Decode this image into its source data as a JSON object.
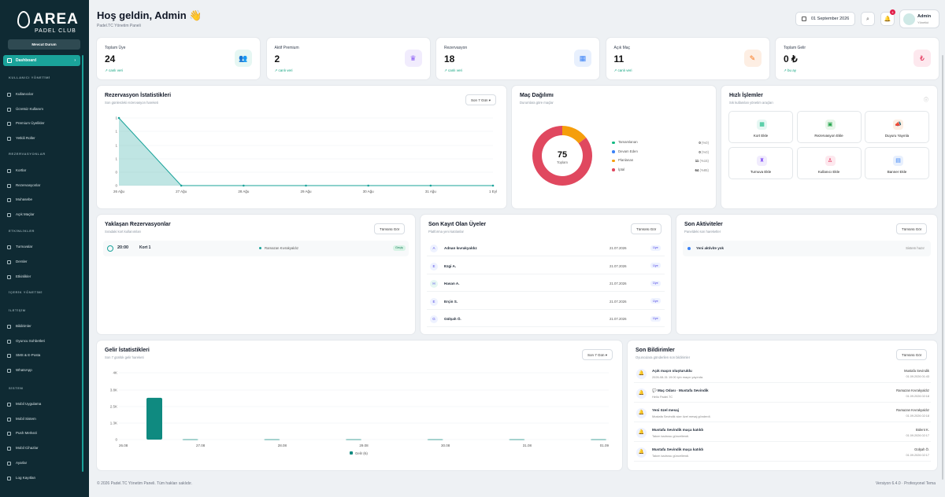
{
  "brand": {
    "name": "AREA",
    "sub": "PADEL CLUB"
  },
  "sidebar": {
    "site_button": "Mevcut Durum",
    "active": "Dashboard",
    "sections": [
      {
        "title": "KULLANICI YÖNETİMİ",
        "items": [
          "Kullanıcılar",
          "Ücretsiz Kullanım",
          "Premium Üyelikler",
          "Yetkili Roller"
        ]
      },
      {
        "title": "REZERVASYONLAR",
        "items": [
          "Kortlar",
          "Rezervasyonlar",
          "Muhasebe",
          "Açık Maçlar"
        ]
      },
      {
        "title": "ETKİNLİKLER",
        "items": [
          "Turnuvalar",
          "Dersler",
          "Etkinlikler"
        ]
      },
      {
        "title": "İÇERİK YÖNETİMİ",
        "items": []
      },
      {
        "title": "İLETİŞİM",
        "items": [
          "Bildirimler",
          "Oyuncu Sohbetleri",
          "SMS & E-Posta",
          "WhatsApp"
        ]
      },
      {
        "title": "SİSTEM",
        "items": [
          "Mobil Uygulama",
          "Mobil Sistem",
          "Push Merkezi",
          "Mobil Cihazlar",
          "Ayarlar",
          "Log Kayıtları"
        ]
      }
    ]
  },
  "header": {
    "title": "Hoş geldin, Admin 👋",
    "subtitle": "Padel.TC Yönetim Paneli",
    "date": "01 September 2026",
    "notif_count": "4",
    "user_name": "Admin",
    "user_role": "Yönetici"
  },
  "stats": [
    {
      "label": "Toplam Üye",
      "value": "24",
      "trend": "canlı veri",
      "color": "#10b981",
      "bg": "#e6f7f3",
      "icon": "users-icon",
      "glyph": "👥"
    },
    {
      "label": "Aktif Premium",
      "value": "2",
      "trend": "canlı veri",
      "color": "#8b5cf6",
      "bg": "#f1ecfd",
      "icon": "crown-icon",
      "glyph": "♛"
    },
    {
      "label": "Rezervasyon",
      "value": "18",
      "trend": "canlı veri",
      "color": "#3b82f6",
      "bg": "#e8f0fd",
      "icon": "calendar-icon",
      "glyph": "▦"
    },
    {
      "label": "Açık Maç",
      "value": "11",
      "trend": "canlı veri",
      "color": "#f97316",
      "bg": "#fdeee3",
      "icon": "racket-icon",
      "glyph": "✎"
    },
    {
      "label": "Toplam Gelir",
      "value": "0 ₺",
      "trend": "bu ay",
      "color": "#e11d48",
      "bg": "#fde8ee",
      "icon": "lira-icon",
      "glyph": "₺"
    }
  ],
  "res_chart": {
    "title": "Rezervasyon İstatistikleri",
    "subtitle": "Son günlerdeki rezervasyon hareketi",
    "select": "Son 7 Gün"
  },
  "chart_data": [
    {
      "type": "area",
      "title": "Rezervasyon İstatistikleri",
      "categories": [
        "26 Ağu",
        "27 Ağu",
        "28 Ağu",
        "29 Ağu",
        "30 Ağu",
        "31 Ağu",
        "1 Eyl"
      ],
      "values": [
        1,
        0,
        0,
        0,
        0,
        0,
        0
      ],
      "yticks": [
        "1",
        "1",
        "1",
        "1",
        "0",
        "0"
      ],
      "color": "#1aa39a"
    },
    {
      "type": "pie",
      "title": "Maç Dağılımı",
      "total": 75,
      "slices": [
        {
          "name": "Tamamlanan",
          "value": 0,
          "pct": "(%0)",
          "color": "#10b981"
        },
        {
          "name": "Devam Eden",
          "value": 0,
          "pct": "(%0)",
          "color": "#3b82f6"
        },
        {
          "name": "Planlanan",
          "value": 11,
          "pct": "(%15)",
          "color": "#f59e0b"
        },
        {
          "name": "İptal",
          "value": 64,
          "pct": "(%85)",
          "color": "#e0485f"
        }
      ]
    },
    {
      "type": "bar",
      "title": "Gelir İstatistikleri",
      "categories": [
        "26.08",
        "27.08",
        "28.08",
        "29.08",
        "30.08",
        "31.08",
        "01.09"
      ],
      "values": [
        2500,
        20,
        20,
        20,
        20,
        20,
        20
      ],
      "yticks": [
        "4K",
        "3.8K",
        "2.5K",
        "1.3K",
        "0"
      ],
      "ylim": [
        0,
        4000
      ],
      "legend": "Gelir (₺)",
      "color": "#0f8a80"
    }
  ],
  "match": {
    "title": "Maç Dağılımı",
    "subtitle": "Durumlara göre maçlar",
    "center_label": "Toplam"
  },
  "quick": {
    "title": "Hızlı İşlemler",
    "subtitle": "Sık kullanılan yönetim araçları",
    "items": [
      {
        "label": "Kort Ekle",
        "icon": "grid-icon",
        "glyph": "▦",
        "color": "#10b981",
        "bg": "#e6f7f3"
      },
      {
        "label": "Rezervasyon Ekle",
        "icon": "calendar-add-icon",
        "glyph": "▣",
        "color": "#22a34a",
        "bg": "#e8f6ea"
      },
      {
        "label": "Duyuru Yayınla",
        "icon": "megaphone-icon",
        "glyph": "📣",
        "color": "#f97316",
        "bg": "#fdeee3"
      },
      {
        "label": "Turnuva Ekle",
        "icon": "trophy-icon",
        "glyph": "♜",
        "color": "#8b5cf6",
        "bg": "#f1ecfd"
      },
      {
        "label": "Kullanıcı Ekle",
        "icon": "user-add-icon",
        "glyph": "♙",
        "color": "#e11d48",
        "bg": "#fde8ee"
      },
      {
        "label": "Banner Ekle",
        "icon": "image-icon",
        "glyph": "▤",
        "color": "#3b82f6",
        "bg": "#e8f0fd"
      }
    ]
  },
  "upcoming": {
    "title": "Yaklaşan Rezervasyonlar",
    "subtitle": "Sıradaki kort kullanımları",
    "btn": "Tümünü Gör",
    "rows": [
      {
        "time": "20:00",
        "court": "Kort 1",
        "user": "Ramazan Kıvrakyaldız",
        "status": "Geçiş"
      }
    ]
  },
  "members": {
    "title": "Son Kayıt Olan Üyeler",
    "subtitle": "Platforma yeni katılanlar",
    "btn": "Tümünü Gör",
    "rows": [
      {
        "initial": "A",
        "name": "Adnan kıvrakyaldız",
        "date": "21.07.2026",
        "tag": "Üye"
      },
      {
        "initial": "E",
        "name": "Ezgi A.",
        "date": "21.07.2026",
        "tag": "Üye"
      },
      {
        "initial": "H",
        "name": "Hasan A.",
        "date": "21.07.2026",
        "tag": "Üye"
      },
      {
        "initial": "E",
        "name": "Erçin S.",
        "date": "21.07.2026",
        "tag": "Üye"
      },
      {
        "initial": "G",
        "name": "Gülşah Ö.",
        "date": "21.07.2026",
        "tag": "Üye"
      }
    ]
  },
  "activities": {
    "title": "Son Aktiviteler",
    "subtitle": "Paneldeki son hareketler",
    "btn": "Tümünü Gör",
    "empty": "Yeni aktivite yok",
    "right": "Sistem hazır"
  },
  "income": {
    "title": "Gelir İstatistikleri",
    "subtitle": "Son 7 günlük gelir hareketi",
    "select": "Son 7 Gün"
  },
  "notifs": {
    "title": "Son Bildirimler",
    "subtitle": "Oyunculara gönderilen son bildirimler",
    "btn": "Tümünü Gör",
    "rows": [
      {
        "title": "Açık maçın oluşturuldu",
        "desc": "2026-08-31 19:00 için maçın yayında.",
        "who": "Mustafa Sevindik",
        "date": "01.09.2026 01:43"
      },
      {
        "title": "💬 Maç Odası · Mustafa Sevindik",
        "desc": "Hello Padel.TC",
        "who": "Ramazan Kıvrakyaldız",
        "date": "01.09.2026 02:18"
      },
      {
        "title": "Yeni özel mesaj",
        "desc": "Mustafa Sevindik size özel mesaj gönderdi.",
        "who": "Ramazan Kıvrakyaldız",
        "date": "01.09.2026 02:18"
      },
      {
        "title": "Mustafa Sevindik maça katıldı",
        "desc": "Takım kadrosu güncellendi.",
        "who": "Bülent K.",
        "date": "01.09.2026 02:17"
      },
      {
        "title": "Mustafa Sevindik maça katıldı",
        "desc": "Takım kadrosu güncellendi.",
        "who": "Gülşah Ö.",
        "date": "01.09.2026 02:17"
      }
    ]
  },
  "footer": {
    "left": "© 2026 Padel.TC Yönetim Paneli. Tüm hakları saklıdır.",
    "right": "Versiyon 6.4.0 · Profesyonel Tema"
  }
}
